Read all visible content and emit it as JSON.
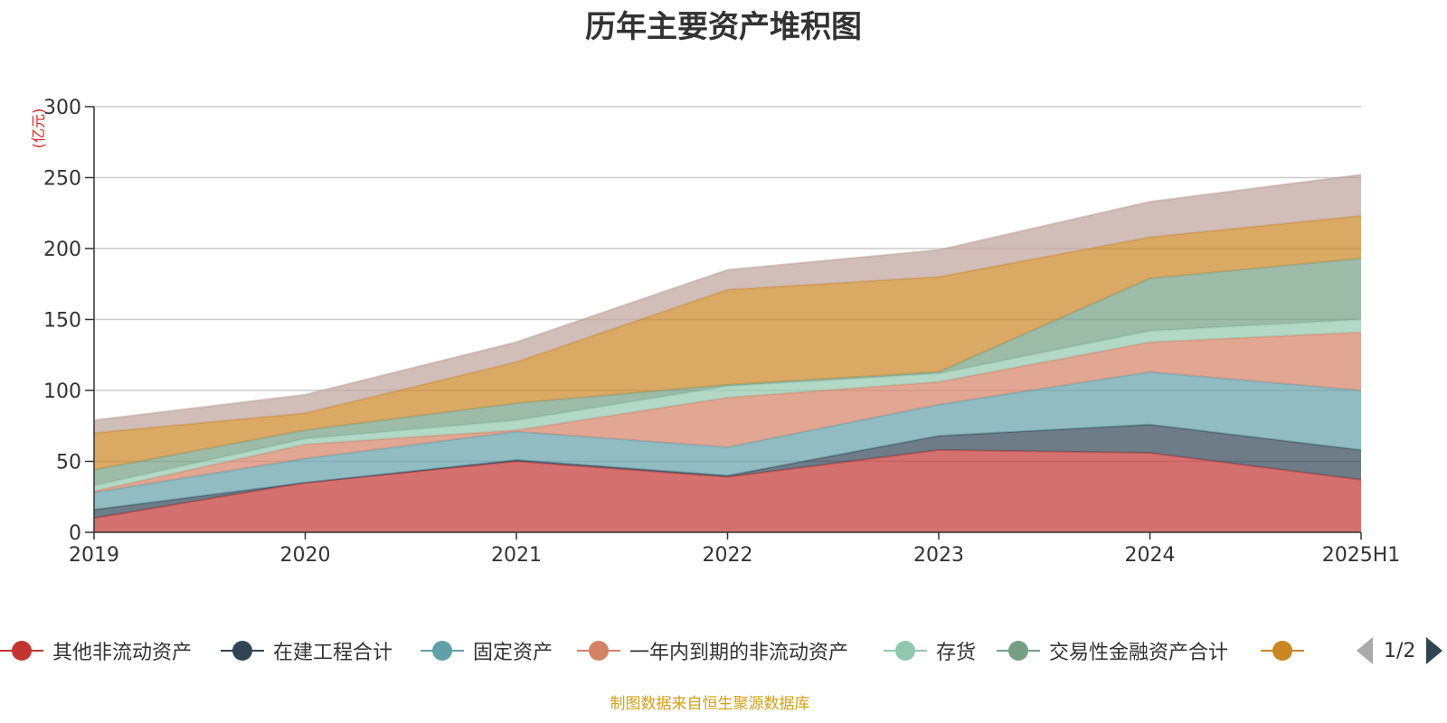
{
  "chart_data": {
    "type": "area",
    "title": "历年主要资产堆积图",
    "ylabel": "(亿元)",
    "xlabel": "",
    "ylim": [
      0,
      300
    ],
    "yticks": [
      0,
      50,
      100,
      150,
      200,
      250,
      300
    ],
    "categories": [
      "2019",
      "2020",
      "2021",
      "2022",
      "2023",
      "2024",
      "2025H1"
    ],
    "stacked": true,
    "grid": true,
    "legend_position": "bottom",
    "series": [
      {
        "name": "其他非流动资产",
        "color": "#c23531",
        "values": [
          10,
          35,
          50,
          39,
          58,
          56,
          37
        ]
      },
      {
        "name": "在建工程合计",
        "color": "#2f4554",
        "values": [
          6,
          0,
          1,
          1,
          10,
          20,
          21
        ]
      },
      {
        "name": "固定资产",
        "color": "#61a0a8",
        "values": [
          12,
          17,
          20,
          20,
          22,
          37,
          42
        ]
      },
      {
        "name": "一年内到期的非流动资产",
        "color": "#d48265",
        "values": [
          1,
          10,
          1,
          35,
          16,
          21,
          41
        ]
      },
      {
        "name": "存货",
        "color": "#91c7ae",
        "values": [
          4,
          4,
          7,
          8,
          6,
          8,
          9
        ]
      },
      {
        "name": "交易性金融资产合计",
        "color": "#749f83",
        "values": [
          11,
          6,
          12,
          1,
          1,
          37,
          43
        ]
      },
      {
        "name": "",
        "color": "#ca8622",
        "values": [
          26,
          12,
          29,
          67,
          67,
          29,
          30
        ]
      },
      {
        "name": "",
        "color": "#bda29a",
        "values": [
          9,
          13,
          14,
          14,
          19,
          25,
          29
        ]
      }
    ]
  },
  "legend": {
    "items": [
      {
        "label": "其他非流动资产",
        "color": "#c23531"
      },
      {
        "label": "在建工程合计",
        "color": "#2f4554"
      },
      {
        "label": "固定资产",
        "color": "#61a0a8"
      },
      {
        "label": "一年内到期的非流动资产",
        "color": "#d48265"
      },
      {
        "label": "存货",
        "color": "#91c7ae"
      },
      {
        "label": "交易性金融资产合计",
        "color": "#749f83"
      },
      {
        "label": "",
        "color": "#ca8622"
      }
    ],
    "page_text": "1/2"
  },
  "source_note": "制图数据来自恒生聚源数据库"
}
